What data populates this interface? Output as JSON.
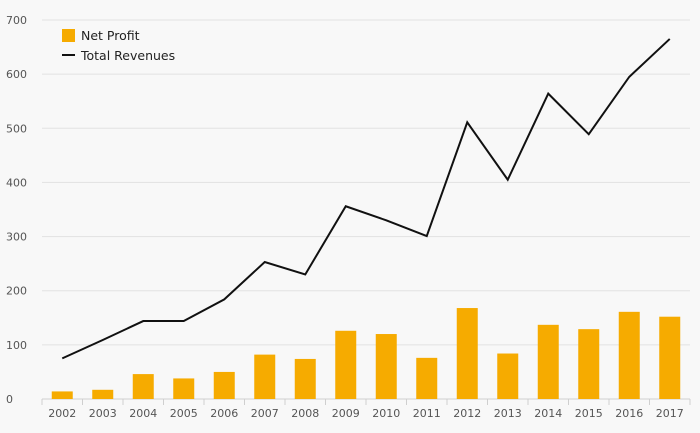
{
  "chart_data": {
    "type": "bar",
    "categories": [
      "2002",
      "2003",
      "2004",
      "2005",
      "2006",
      "2007",
      "2008",
      "2009",
      "2010",
      "2011",
      "2012",
      "2013",
      "2014",
      "2015",
      "2016",
      "2017"
    ],
    "series": [
      {
        "name": "Net Profit",
        "type": "bar",
        "values": [
          14,
          17,
          46,
          38,
          50,
          82,
          74,
          126,
          120,
          76,
          168,
          84,
          137,
          129,
          161,
          152
        ]
      },
      {
        "name": "Total Revenues",
        "type": "line",
        "values": [
          75,
          109,
          144,
          144,
          184,
          253,
          230,
          356,
          330,
          301,
          511,
          405,
          564,
          489,
          595,
          665
        ]
      }
    ],
    "ylim": [
      0,
      700
    ],
    "yticks": [
      0,
      100,
      200,
      300,
      400,
      500,
      600,
      700
    ],
    "grid": true,
    "legend_position": "top-left",
    "colors": {
      "bar": "#f6ab00",
      "line": "#111111",
      "grid": "#e2e2e2",
      "background": "#f8f8f8"
    }
  }
}
